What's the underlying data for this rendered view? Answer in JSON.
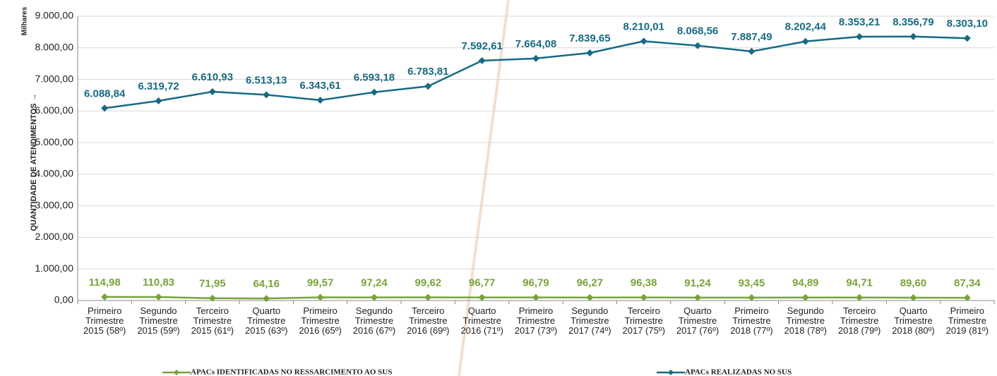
{
  "chart_data": {
    "type": "line",
    "y_axis_label": "QUANTIDADE DE ATENDIMENTOS →",
    "y_unit_label": "Milhares",
    "categories": [
      [
        "Primeiro",
        "Trimestre",
        "2015 (58º)"
      ],
      [
        "Segundo",
        "Trimestre",
        "2015 (59º)"
      ],
      [
        "Terceiro",
        "Trimestre",
        "2015 (61º)"
      ],
      [
        "Quarto",
        "Trimestre",
        "2015 (63º)"
      ],
      [
        "Primeiro",
        "Trimestre",
        "2016 (65º)"
      ],
      [
        "Segundo",
        "Trimestre",
        "2016 (67º)"
      ],
      [
        "Terceiro",
        "Trimestre",
        "2016 (69º)"
      ],
      [
        "Quarto",
        "Trimestre",
        "2016 (71º)"
      ],
      [
        "Primeiro",
        "Trimestre",
        "2017 (73º)"
      ],
      [
        "Segundo",
        "Trimestre",
        "2017 (74º)"
      ],
      [
        "Terceiro",
        "Trimestre",
        "2017 (75º)"
      ],
      [
        "Quarto",
        "Trimestre",
        "2017 (76º)"
      ],
      [
        "Primeiro",
        "Trimestre",
        "2018 (77º)"
      ],
      [
        "Segundo",
        "Trimestre",
        "2018 (78º)"
      ],
      [
        "Terceiro",
        "Trimestre",
        "2018 (79º)"
      ],
      [
        "Quarto",
        "Trimestre",
        "2018 (80º)"
      ],
      [
        "Primeiro",
        "Trimestre",
        "2019 (81º)"
      ]
    ],
    "series": [
      {
        "name": "APACs IDENTIFICADAS NO RESSARCIMENTO AO SUS",
        "color": "#77a43a",
        "values": [
          114.98,
          110.83,
          71.95,
          64.16,
          99.57,
          97.24,
          99.62,
          96.77,
          96.79,
          96.27,
          96.38,
          91.24,
          93.45,
          94.89,
          94.71,
          89.6,
          87.34
        ],
        "value_labels": [
          "114,98",
          "110,83",
          "71,95",
          "64,16",
          "99,57",
          "97,24",
          "99,62",
          "96,77",
          "96,79",
          "96,27",
          "96,38",
          "91,24",
          "93,45",
          "94,89",
          "94,71",
          "89,60",
          "87,34"
        ]
      },
      {
        "name": "APACs REALIZADAS NO SUS",
        "color": "#176a84",
        "values": [
          6088.84,
          6319.72,
          6610.93,
          6513.13,
          6343.61,
          6593.18,
          6783.81,
          7592.61,
          7664.08,
          7839.65,
          8210.01,
          8068.56,
          7887.49,
          8202.44,
          8353.21,
          8356.79,
          8303.1
        ],
        "value_labels": [
          "6.088,84",
          "6.319,72",
          "6.610,93",
          "6.513,13",
          "6.343,61",
          "6.593,18",
          "6.783,81",
          "7.592,61",
          "7.664,08",
          "7.839,65",
          "8.210,01",
          "8.068,56",
          "7.887,49",
          "8.202,44",
          "8.353,21",
          "8.356,79",
          "8.303,10"
        ]
      }
    ],
    "ylim": [
      0,
      9000
    ],
    "yticks": [
      {
        "value": 0,
        "label": "0,00"
      },
      {
        "value": 1000,
        "label": "1.000,00"
      },
      {
        "value": 2000,
        "label": "2.000,00"
      },
      {
        "value": 3000,
        "label": "3.000,00"
      },
      {
        "value": 4000,
        "label": "4.000,00"
      },
      {
        "value": 5000,
        "label": "5.000,00"
      },
      {
        "value": 6000,
        "label": "6.000,00"
      },
      {
        "value": 7000,
        "label": "7.000,00"
      },
      {
        "value": 8000,
        "label": "8.000,00"
      },
      {
        "value": 9000,
        "label": "9.000,00"
      }
    ],
    "grid": true,
    "legend": "bottom"
  }
}
